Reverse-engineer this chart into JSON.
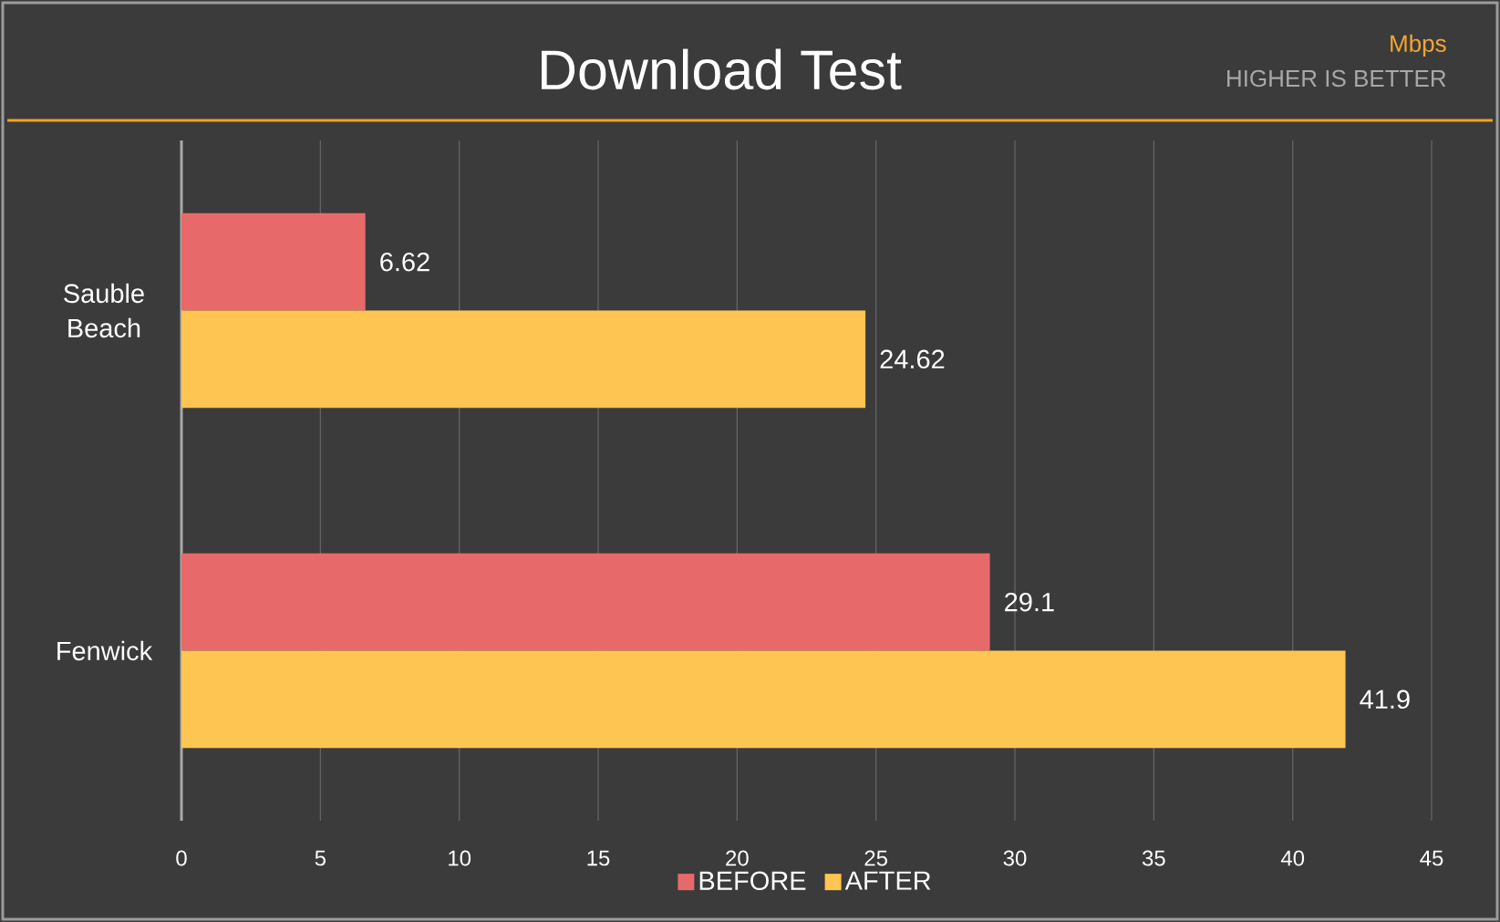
{
  "chart_data": {
    "type": "bar",
    "orientation": "horizontal",
    "title": "Download Test",
    "annotations": [
      "Mbps",
      "HIGHER IS BETTER"
    ],
    "categories": [
      "Sauble Beach",
      "Fenwick"
    ],
    "series": [
      {
        "name": "BEFORE",
        "color": "#e8696a",
        "values": [
          6.62,
          29.1
        ]
      },
      {
        "name": "AFTER",
        "color": "#ffc552",
        "values": [
          24.62,
          41.9
        ]
      }
    ],
    "xlim": [
      0,
      45
    ],
    "xticks": [
      0,
      5,
      10,
      15,
      20,
      25,
      30,
      35,
      40,
      45
    ],
    "grid": "x",
    "legend": "bottom",
    "data_labels": true
  }
}
